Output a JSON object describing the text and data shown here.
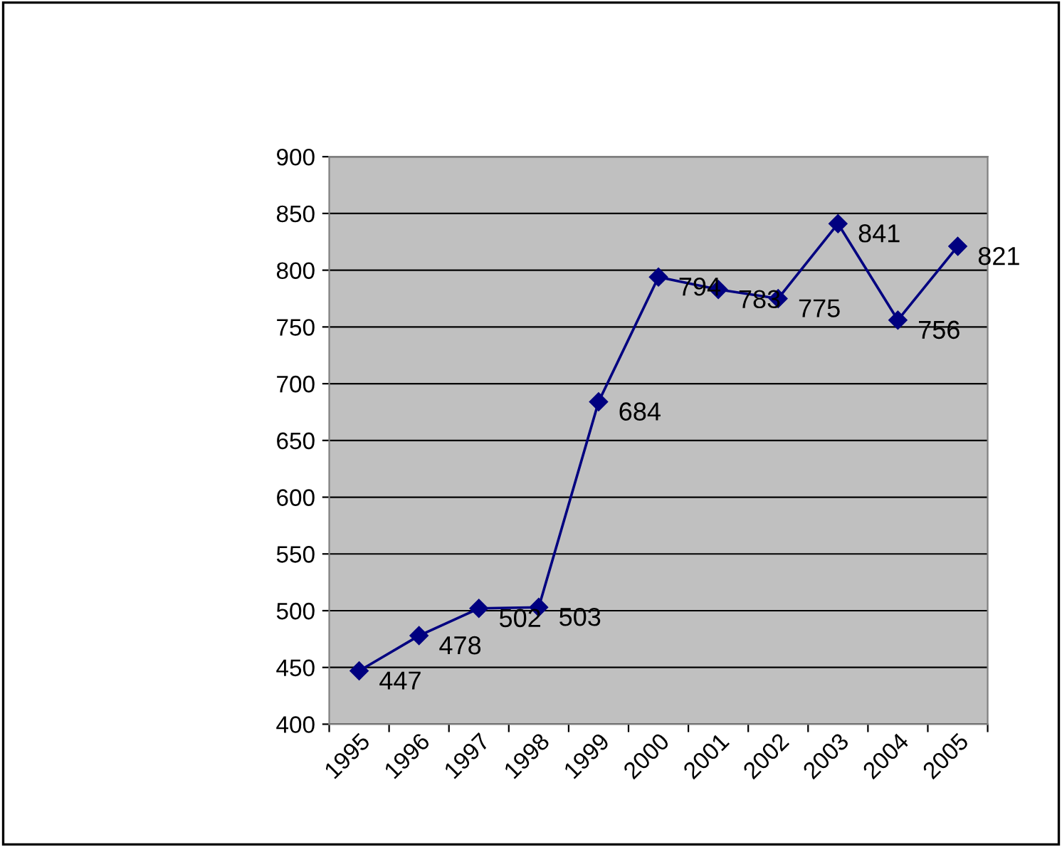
{
  "chart_data": {
    "type": "line",
    "categories": [
      "1995",
      "1996",
      "1997",
      "1998",
      "1999",
      "2000",
      "2001",
      "2002",
      "2003",
      "2004",
      "2005"
    ],
    "series": [
      {
        "color": "#000080",
        "values": [
          447,
          478,
          502,
          503,
          684,
          794,
          783,
          775,
          841,
          756,
          821
        ]
      }
    ],
    "ylim": [
      400,
      900
    ],
    "yticks": [
      400,
      450,
      500,
      550,
      600,
      650,
      700,
      750,
      800,
      850,
      900
    ],
    "grid": "y",
    "legend": false,
    "marker": "diamond",
    "line_style": "solid",
    "data_labels": true
  }
}
